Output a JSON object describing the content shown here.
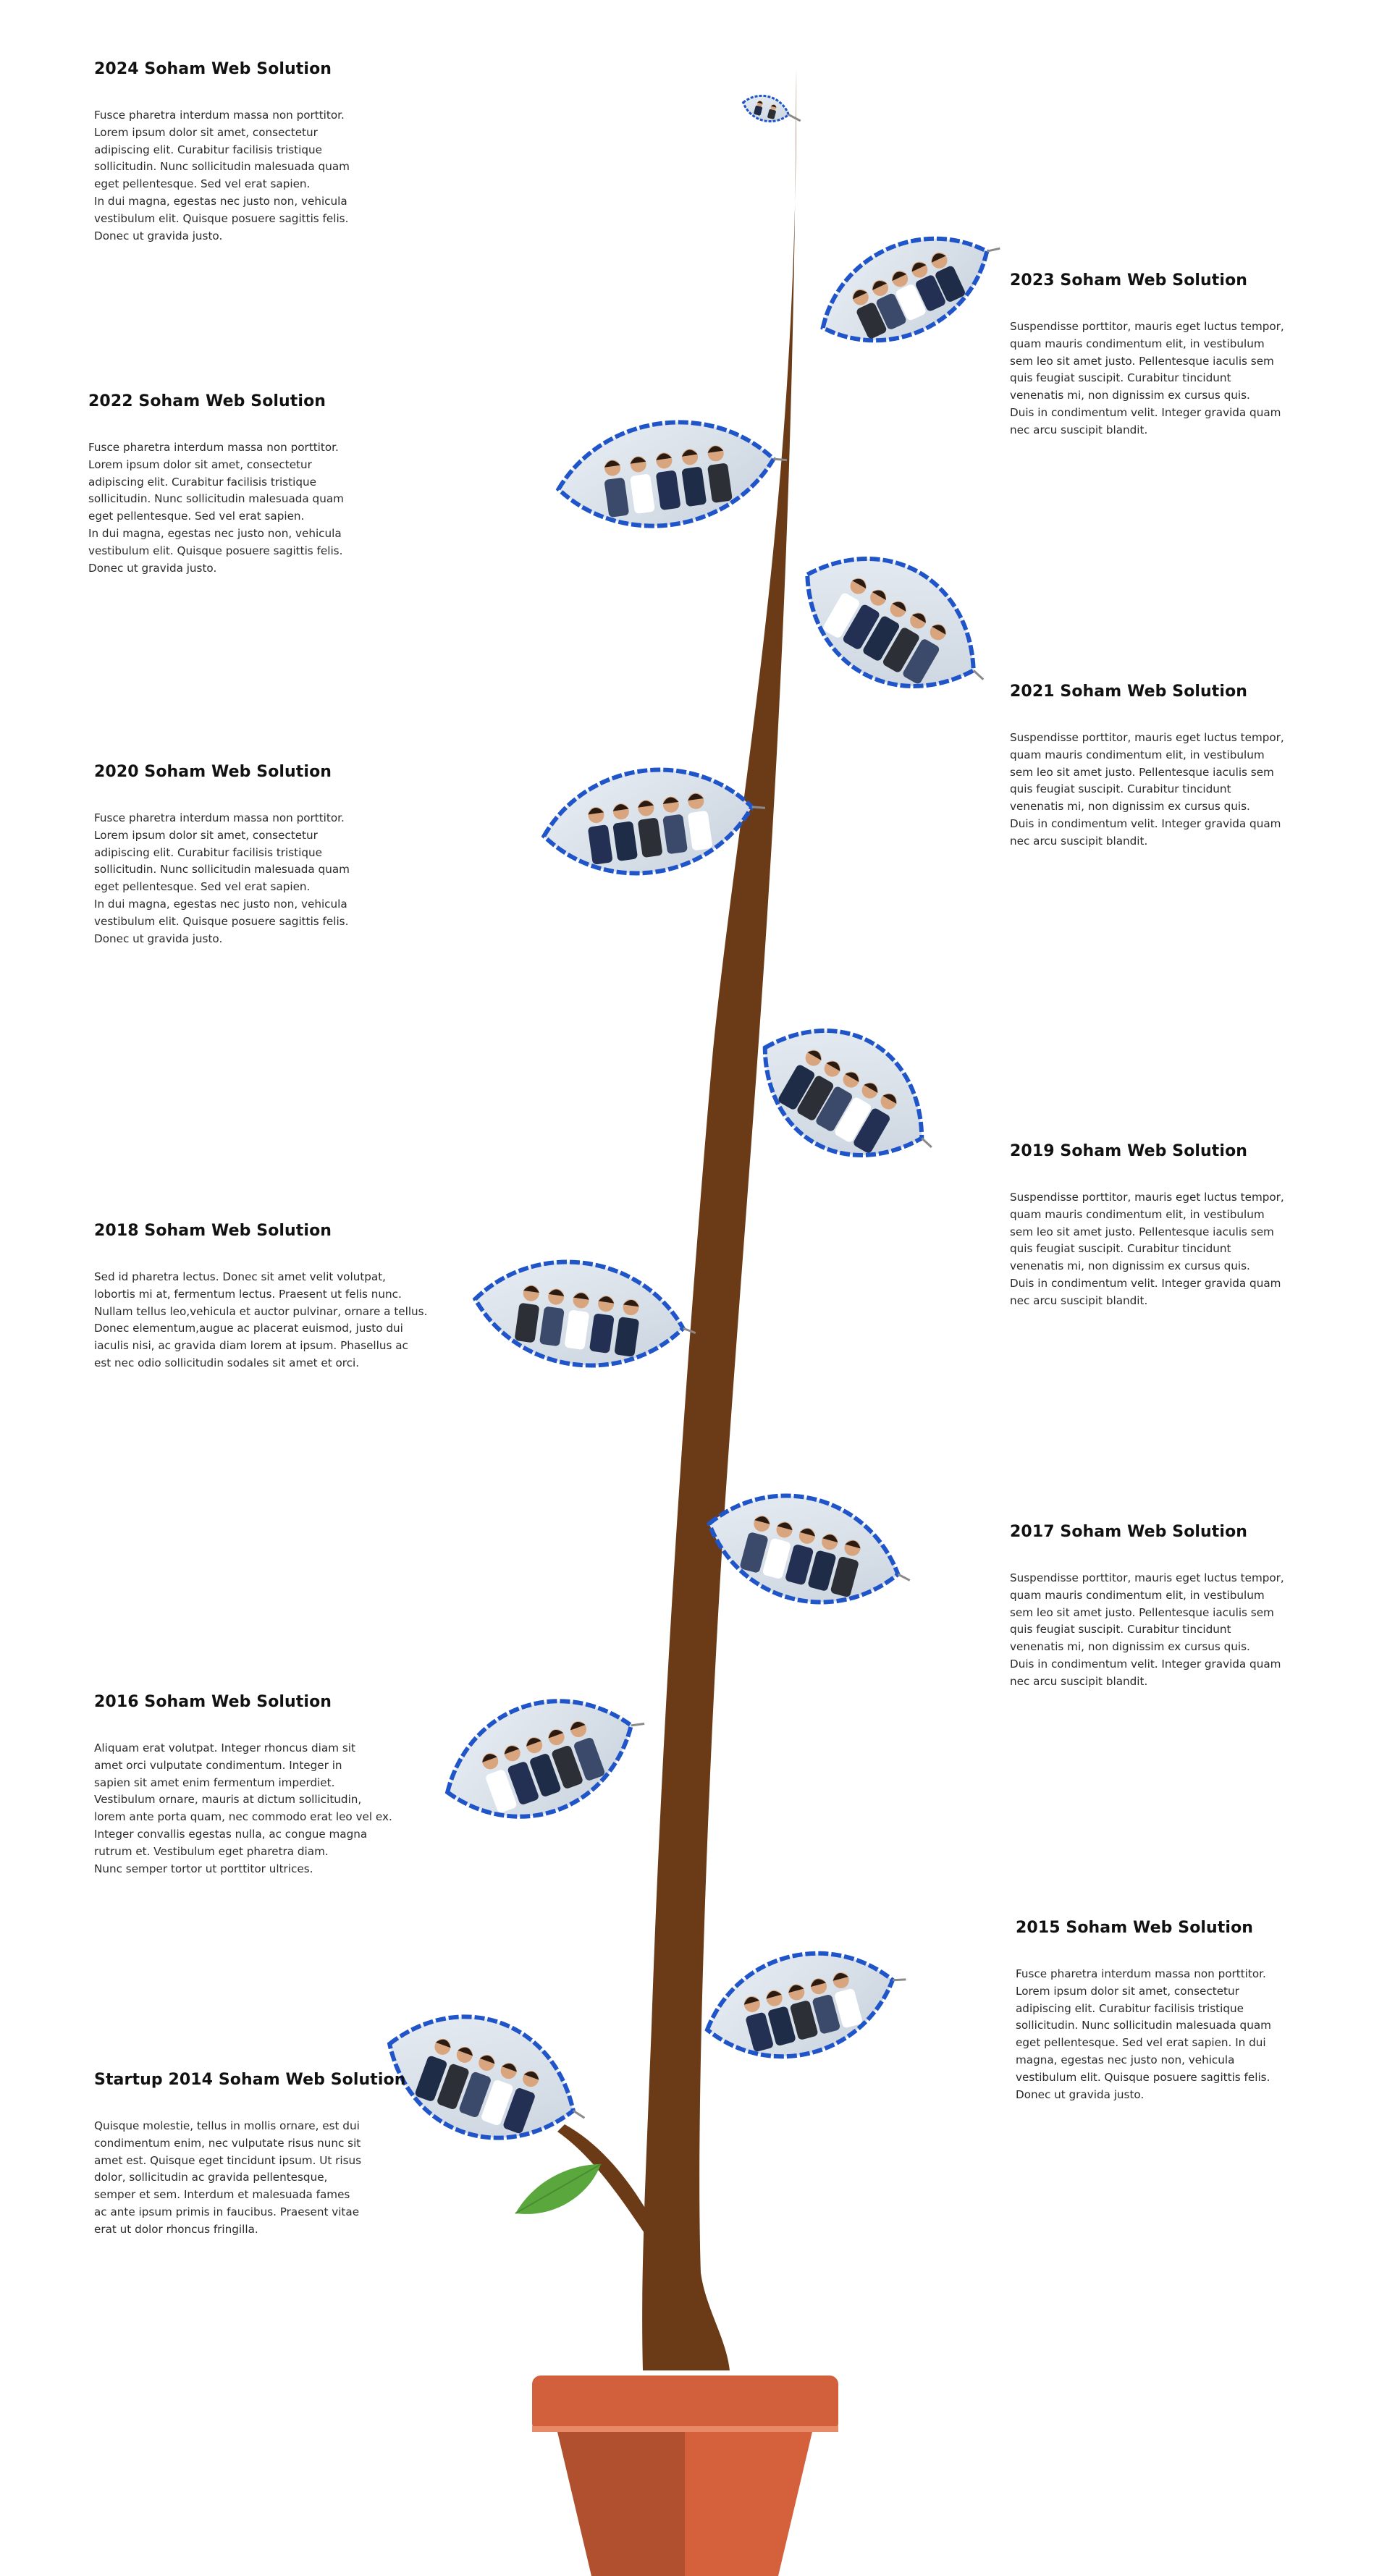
{
  "palette": {
    "stem": "#6b3a16",
    "leaf_border": "#1f55c8",
    "pot_rim": "#d2603c",
    "pot_body": "#d4603c",
    "pot_shadow": "#b0502e",
    "small_leaf": "#5aa83d",
    "text": "#1a1a1a"
  },
  "timeline": [
    {
      "title": "2024 Soham Web Solution",
      "text": "Fusce pharetra interdum massa non porttitor.\nLorem ipsum dolor sit amet, consectetur\nadipiscing elit. Curabitur facilisis tristique\nsollicitudin. Nunc sollicitudin malesuada quam\neget pellentesque. Sed vel erat sapien.\nIn dui magna, egestas nec justo non, vehicula\nvestibulum elit. Quisque posuere sagittis felis.\nDonec ut gravida justo."
    },
    {
      "title": "2023 Soham Web Solution",
      "text": "Suspendisse porttitor, mauris eget luctus tempor,\nquam mauris condimentum elit, in vestibulum\nsem leo sit amet justo. Pellentesque iaculis sem\nquis feugiat suscipit. Curabitur tincidunt\nvenenatis mi, non dignissim ex cursus quis.\nDuis in condimentum velit. Integer gravida quam\nnec arcu suscipit blandit."
    },
    {
      "title": "2022 Soham Web Solution",
      "text": "Fusce pharetra interdum massa non porttitor.\nLorem ipsum dolor sit amet, consectetur\nadipiscing elit. Curabitur facilisis tristique\nsollicitudin. Nunc sollicitudin malesuada quam\neget pellentesque. Sed vel erat sapien.\nIn dui magna, egestas nec justo non, vehicula\nvestibulum elit. Quisque posuere sagittis felis.\nDonec ut gravida justo."
    },
    {
      "title": "2021 Soham Web Solution",
      "text": "Suspendisse porttitor, mauris eget luctus tempor,\nquam mauris condimentum elit, in vestibulum\nsem leo sit amet justo. Pellentesque iaculis sem\nquis feugiat suscipit. Curabitur tincidunt\nvenenatis mi, non dignissim ex cursus quis.\nDuis in condimentum velit. Integer gravida quam\nnec arcu suscipit blandit."
    },
    {
      "title": "2020 Soham Web Solution",
      "text": "Fusce pharetra interdum massa non porttitor.\nLorem ipsum dolor sit amet, consectetur\nadipiscing elit. Curabitur facilisis tristique\nsollicitudin. Nunc sollicitudin malesuada quam\neget pellentesque. Sed vel erat sapien.\nIn dui magna, egestas nec justo non, vehicula\nvestibulum elit. Quisque posuere sagittis felis.\nDonec ut gravida justo."
    },
    {
      "title": "2019 Soham Web Solution",
      "text": "Suspendisse porttitor, mauris eget luctus tempor,\nquam mauris condimentum elit, in vestibulum\nsem leo sit amet justo. Pellentesque iaculis sem\nquis feugiat suscipit. Curabitur tincidunt\nvenenatis mi, non dignissim ex cursus quis.\nDuis in condimentum velit. Integer gravida quam\nnec arcu suscipit blandit."
    },
    {
      "title": "2018 Soham Web Solution",
      "text": "Sed id pharetra lectus. Donec sit amet velit volutpat,\nlobortis mi at, fermentum lectus. Praesent ut felis nunc.\nNullam tellus leo,vehicula et auctor pulvinar, ornare a tellus.\nDonec elementum,augue ac placerat euismod, justo dui\niaculis nisi, ac gravida diam lorem at ipsum. Phasellus ac\nest nec odio sollicitudin sodales sit amet et orci."
    },
    {
      "title": "2017 Soham Web Solution",
      "text": "Suspendisse porttitor, mauris eget luctus tempor,\nquam mauris condimentum elit, in vestibulum\nsem leo sit amet justo. Pellentesque iaculis sem\nquis feugiat suscipit. Curabitur tincidunt\nvenenatis mi, non dignissim ex cursus quis.\nDuis in condimentum velit. Integer gravida quam\nnec arcu suscipit blandit."
    },
    {
      "title": "2016 Soham Web Solution",
      "text": "Aliquam erat volutpat. Integer rhoncus diam sit\namet orci vulputate condimentum. Integer in\nsapien sit amet enim fermentum imperdiet.\nVestibulum ornare, mauris at dictum sollicitudin,\nlorem ante porta quam, nec commodo erat leo vel ex.\nInteger convallis egestas nulla, ac congue magna\nrutrum et. Vestibulum eget pharetra diam.\nNunc semper tortor ut porttitor ultrices."
    },
    {
      "title": "2015 Soham Web Solution",
      "text": "Fusce pharetra interdum massa non porttitor.\nLorem ipsum dolor sit amet, consectetur\nadipiscing elit. Curabitur facilisis tristique\nsollicitudin. Nunc sollicitudin malesuada quam\neget pellentesque. Sed vel erat sapien. In dui\nmagna, egestas nec justo non, vehicula\nvestibulum elit. Quisque posuere sagittis felis.\nDonec ut gravida justo."
    },
    {
      "title": "Startup 2014 Soham Web Solution",
      "text": "Quisque molestie, tellus in mollis ornare, est dui\ncondimentum enim, nec vulputate risus nunc sit\namet est. Quisque eget tincidunt ipsum. Ut risus\ndolor, sollicitudin ac gravida pellentesque,\nsemper et sem. Interdum et malesuada fames\nac ante ipsum primis in faucibus. Praesent vitae\nerat ut dolor rhoncus fringilla."
    }
  ]
}
